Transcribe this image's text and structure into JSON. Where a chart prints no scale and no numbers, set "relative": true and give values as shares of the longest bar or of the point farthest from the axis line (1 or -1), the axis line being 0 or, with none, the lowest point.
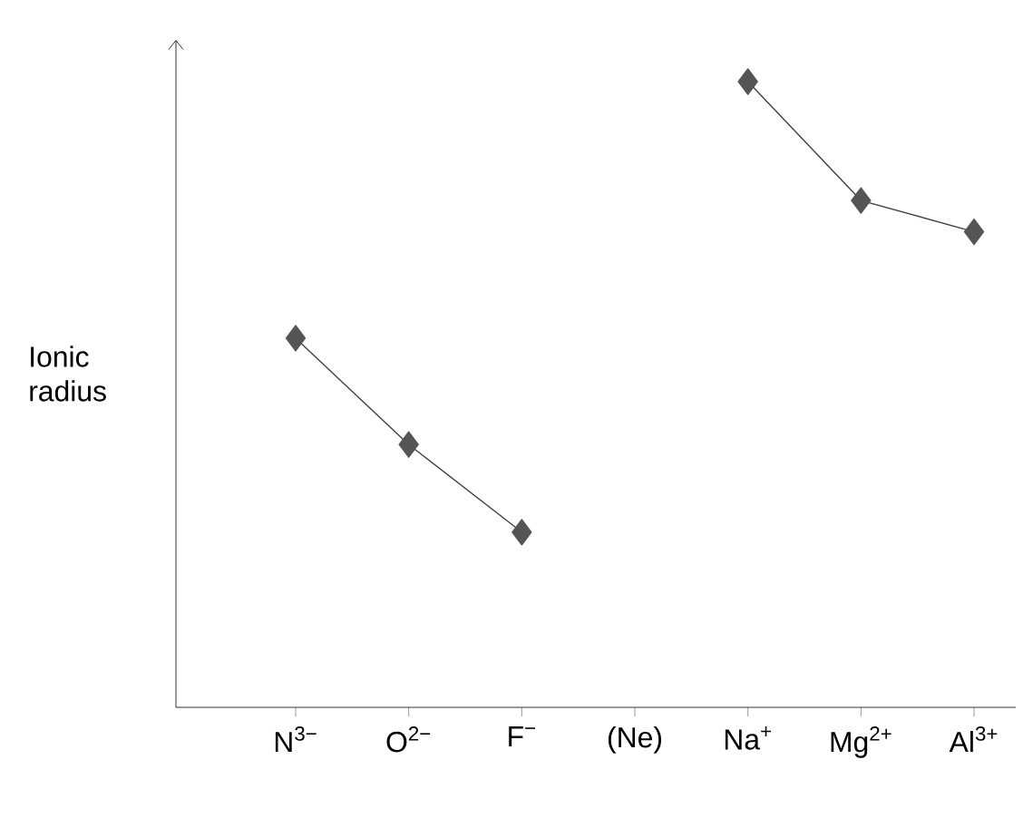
{
  "chart_data": {
    "type": "line",
    "ylabel": "Ionic radius",
    "relative": true,
    "categories": [
      "N$^{3−}$",
      "O$^{2−}$",
      "F$^{−}$",
      "(Ne)",
      "Na$^{+}$",
      "Mg$^{2+}$",
      "Al$^{3+}$"
    ],
    "series": [
      {
        "color": "#555555",
        "values": [
          0.59,
          0.42,
          0.28,
          null,
          1,
          0.81,
          0.76
        ]
      }
    ],
    "marker": "diamond",
    "line_style": "solid",
    "grid": false
  }
}
